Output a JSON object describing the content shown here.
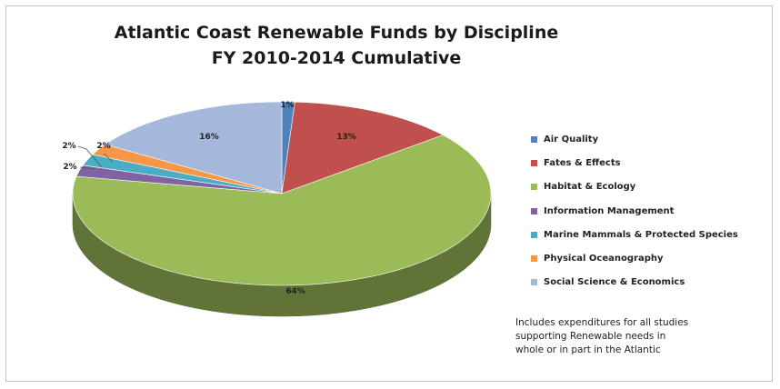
{
  "chart_data": {
    "type": "pie",
    "title_line1": "Atlantic Coast Renewable Funds by Discipline",
    "title_line2": "FY 2010-2014 Cumulative",
    "slices": [
      {
        "name": "Air Quality",
        "value": 1,
        "label": "1%",
        "color": "#4f81bd"
      },
      {
        "name": "Fates & Effects",
        "value": 13,
        "label": "13%",
        "color": "#c0504d"
      },
      {
        "name": "Habitat & Ecology",
        "value": 64,
        "label": "64%",
        "color": "#9bbb59"
      },
      {
        "name": "Information Management",
        "value": 2,
        "label": "2%",
        "color": "#8064a2"
      },
      {
        "name": "Marine Mammals & Protected Species",
        "value": 2,
        "label": "2%",
        "color": "#4bacc6"
      },
      {
        "name": "Physical Oceanography",
        "value": 2,
        "label": "2%",
        "color": "#f79646"
      },
      {
        "name": "Social Science & Economics",
        "value": 16,
        "label": "16%",
        "color": "#a5b8dc"
      }
    ],
    "legend_position": "right"
  },
  "note": {
    "line1": "Includes expenditures for all studies",
    "line2": "supporting Renewable needs  in",
    "line3": "whole or in part in the Atlantic"
  }
}
